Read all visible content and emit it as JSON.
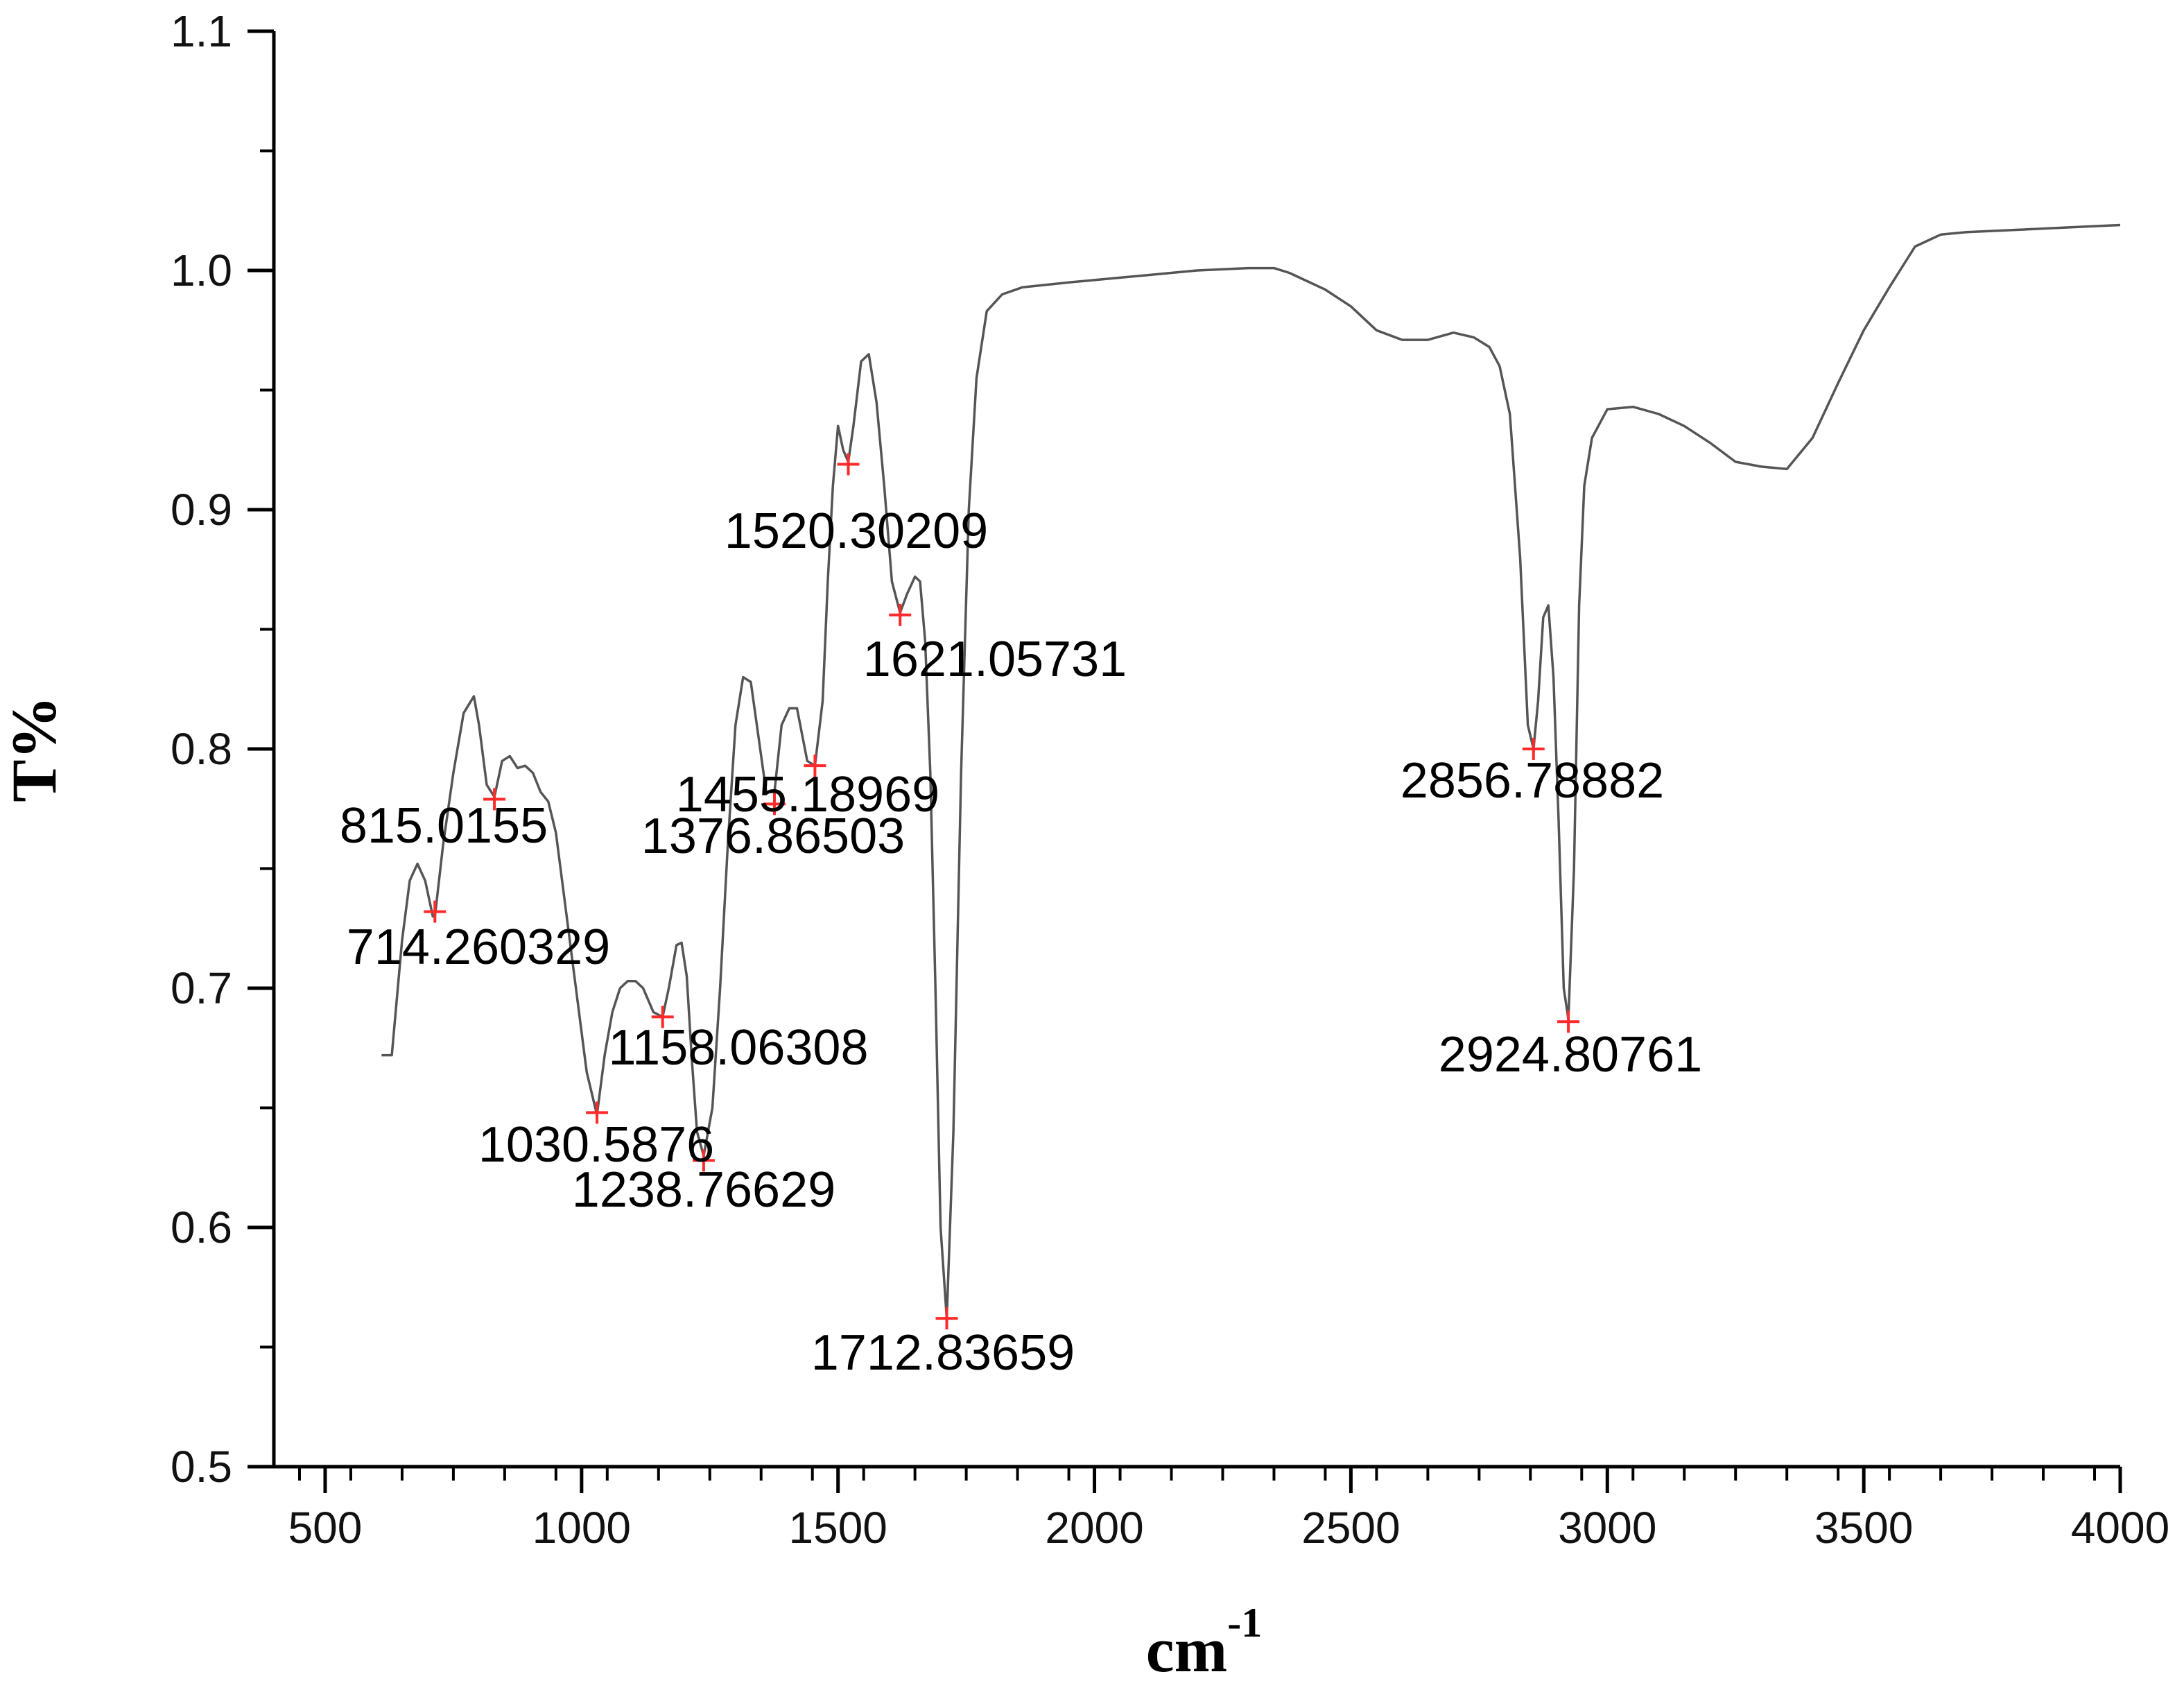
{
  "chart_data": {
    "type": "line",
    "xlabel": "cm",
    "xlabel_superscript": "-1",
    "ylabel": "T%",
    "xlim": [
      400,
      4000
    ],
    "ylim": [
      0.5,
      1.1
    ],
    "grid": false,
    "x_ticks": [
      500,
      1000,
      1500,
      2000,
      2500,
      3000,
      3500,
      4000
    ],
    "x_tick_labels": [
      "500",
      "1000",
      "1500",
      "2000",
      "2500",
      "3000",
      "3500",
      "4000"
    ],
    "y_ticks": [
      0.5,
      0.6,
      0.7,
      0.8,
      0.9,
      1.0,
      1.1
    ],
    "y_tick_labels": [
      "0.5",
      "0.6",
      "0.7",
      "0.8",
      "0.9",
      "1.0",
      "1.1"
    ],
    "line_color": "#555555",
    "marker_color": "#ff2a2a",
    "series": [
      {
        "x": [
          610,
          630,
          650,
          665,
          680,
          695,
          710,
          714,
          730,
          750,
          770,
          790,
          800,
          815,
          830,
          845,
          860,
          875,
          890,
          905,
          920,
          935,
          950,
          965,
          980,
          995,
          1010,
          1030,
          1045,
          1060,
          1075,
          1090,
          1105,
          1120,
          1140,
          1158,
          1170,
          1185,
          1195,
          1205,
          1215,
          1225,
          1238,
          1255,
          1270,
          1285,
          1300,
          1315,
          1330,
          1345,
          1360,
          1376,
          1390,
          1405,
          1420,
          1440,
          1455,
          1470,
          1480,
          1490,
          1500,
          1510,
          1520,
          1530,
          1545,
          1560,
          1575,
          1590,
          1605,
          1621,
          1635,
          1650,
          1660,
          1670,
          1680,
          1690,
          1700,
          1712,
          1725,
          1740,
          1755,
          1770,
          1790,
          1820,
          1860,
          1950,
          2050,
          2200,
          2300,
          2350,
          2380,
          2450,
          2500,
          2550,
          2600,
          2650,
          2700,
          2740,
          2770,
          2790,
          2810,
          2830,
          2845,
          2856,
          2865,
          2875,
          2885,
          2895,
          2905,
          2915,
          2924,
          2935,
          2945,
          2955,
          2970,
          3000,
          3050,
          3100,
          3150,
          3200,
          3250,
          3300,
          3350,
          3400,
          3450,
          3500,
          3550,
          3600,
          3650,
          3700,
          3800,
          3900,
          4000
        ],
        "y": [
          0.672,
          0.672,
          0.72,
          0.745,
          0.752,
          0.745,
          0.73,
          0.73,
          0.76,
          0.79,
          0.815,
          0.822,
          0.81,
          0.785,
          0.78,
          0.795,
          0.797,
          0.792,
          0.793,
          0.79,
          0.782,
          0.778,
          0.765,
          0.74,
          0.715,
          0.69,
          0.665,
          0.647,
          0.672,
          0.69,
          0.7,
          0.703,
          0.703,
          0.7,
          0.69,
          0.688,
          0.7,
          0.718,
          0.719,
          0.705,
          0.67,
          0.64,
          0.63,
          0.65,
          0.7,
          0.76,
          0.81,
          0.83,
          0.828,
          0.805,
          0.782,
          0.782,
          0.81,
          0.817,
          0.817,
          0.795,
          0.793,
          0.82,
          0.87,
          0.91,
          0.935,
          0.925,
          0.92,
          0.935,
          0.962,
          0.965,
          0.945,
          0.91,
          0.87,
          0.857,
          0.865,
          0.872,
          0.87,
          0.845,
          0.79,
          0.7,
          0.6,
          0.562,
          0.64,
          0.79,
          0.9,
          0.955,
          0.983,
          0.99,
          0.993,
          0.995,
          0.997,
          1.0,
          1.001,
          1.001,
          0.999,
          0.992,
          0.985,
          0.975,
          0.971,
          0.971,
          0.974,
          0.972,
          0.968,
          0.96,
          0.94,
          0.88,
          0.81,
          0.8,
          0.82,
          0.855,
          0.86,
          0.83,
          0.77,
          0.7,
          0.687,
          0.75,
          0.86,
          0.91,
          0.93,
          0.942,
          0.943,
          0.94,
          0.935,
          0.928,
          0.92,
          0.918,
          0.917,
          0.93,
          0.953,
          0.975,
          0.993,
          1.01,
          1.015,
          1.016,
          1.017,
          1.018,
          1.019
        ]
      }
    ],
    "annotations": [
      {
        "text": "714.260329",
        "x": 714,
        "y": 0.732
      },
      {
        "text": "815.0155",
        "x": 830,
        "y": 0.779
      },
      {
        "text": "1030.5876",
        "x": 1030,
        "y": 0.648
      },
      {
        "text": "1158.06308",
        "x": 1158,
        "y": 0.688
      },
      {
        "text": "1238.76629",
        "x": 1238,
        "y": 0.628
      },
      {
        "text": "1376.86503",
        "x": 1376,
        "y": 0.777
      },
      {
        "text": "1455.18969",
        "x": 1455,
        "y": 0.793
      },
      {
        "text": "1520.30209",
        "x": 1520,
        "y": 0.919
      },
      {
        "text": "1621.05731",
        "x": 1621,
        "y": 0.856
      },
      {
        "text": "1712.83659",
        "x": 1712,
        "y": 0.562
      },
      {
        "text": "2856.78882",
        "x": 2856,
        "y": 0.8
      },
      {
        "text": "2924.80761",
        "x": 2924,
        "y": 0.686
      }
    ]
  }
}
